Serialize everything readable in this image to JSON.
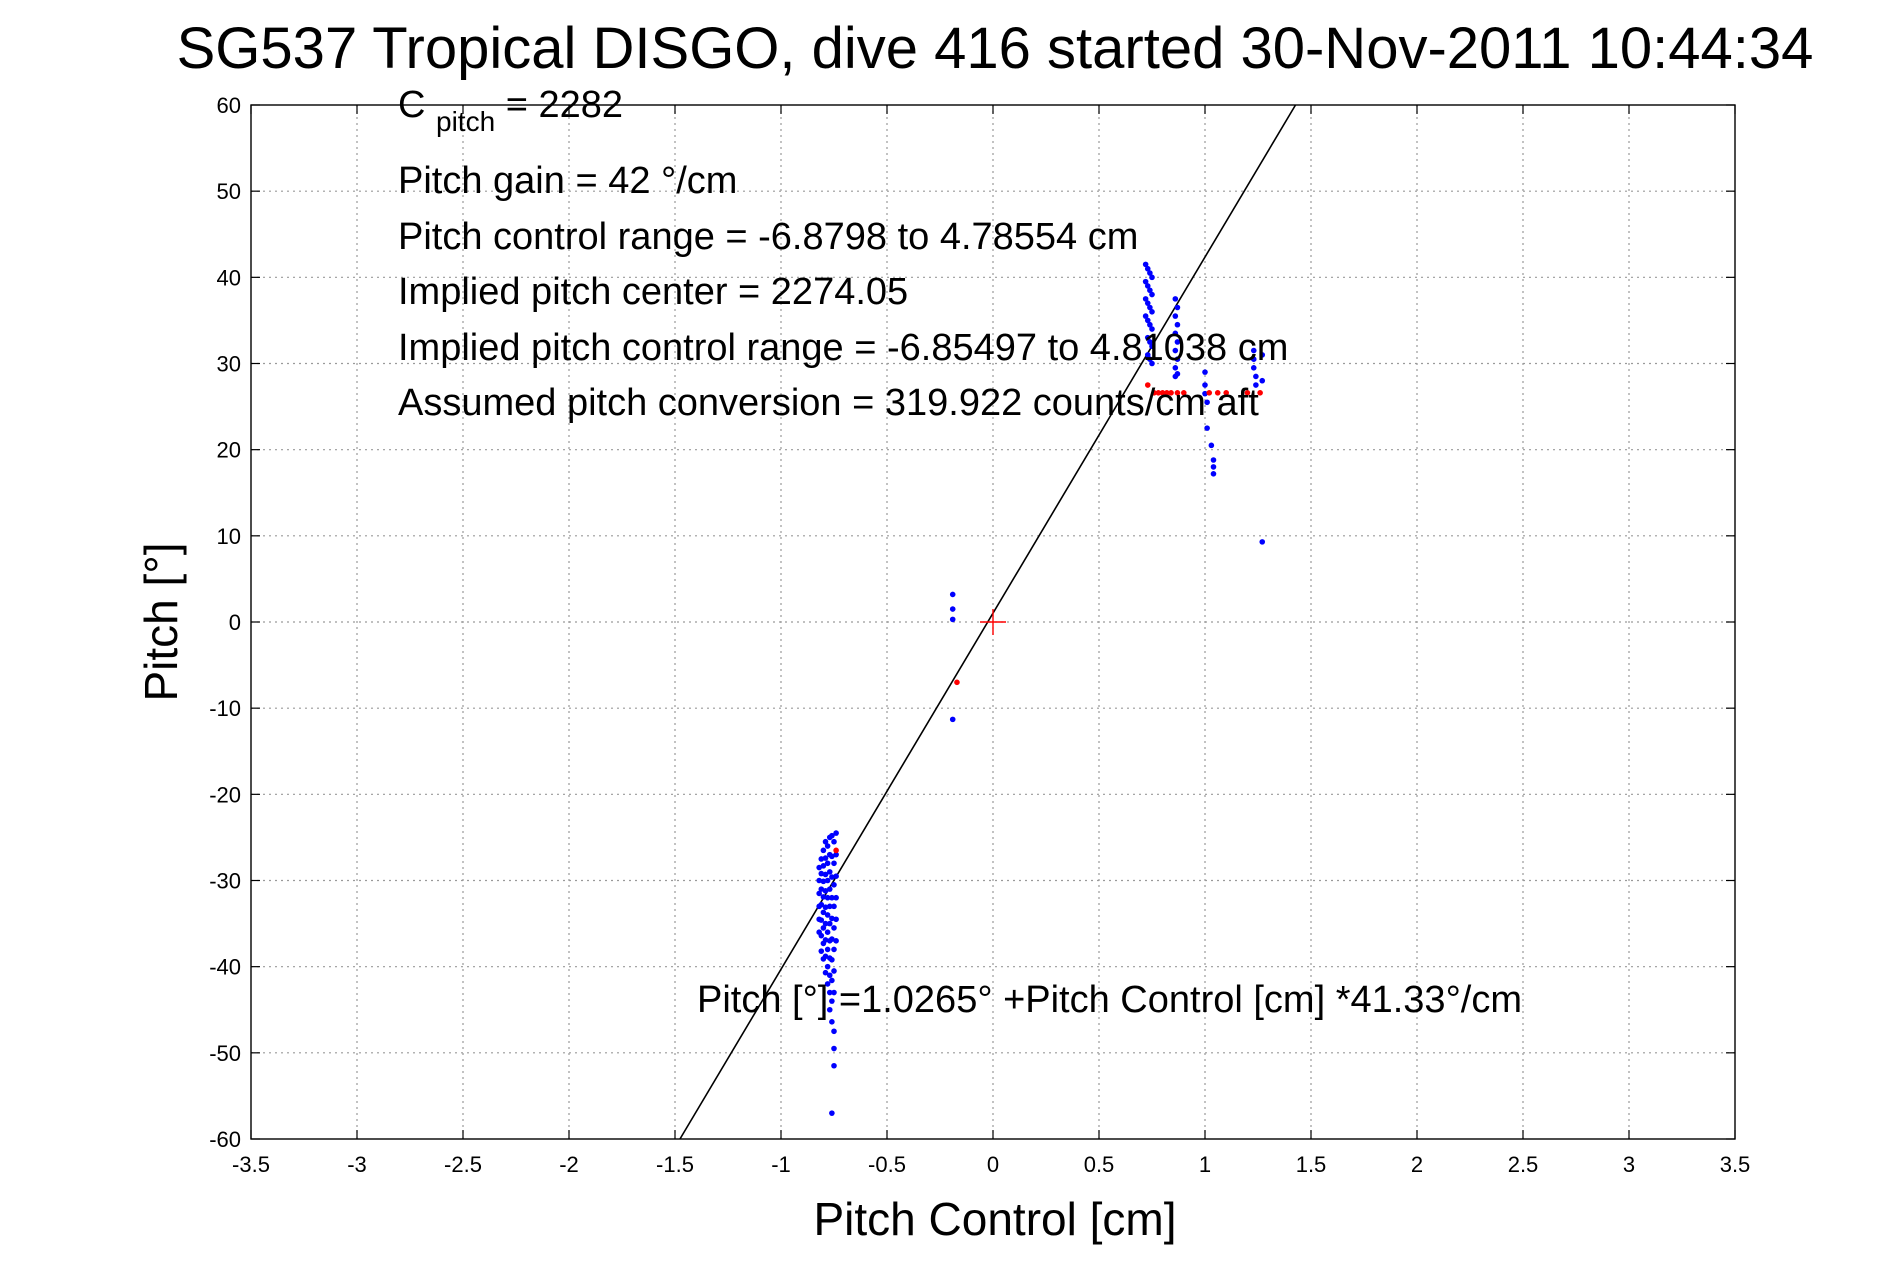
{
  "chart_data": {
    "type": "scatter",
    "title": "SG537 Tropical DISGO, dive 416 started 30-Nov-2011 10:44:34",
    "xlabel": "Pitch Control [cm]",
    "ylabel": "Pitch [°]",
    "xlim": [
      -3.5,
      3.5
    ],
    "ylim": [
      -60,
      60
    ],
    "x_ticks": [
      -3.5,
      -3,
      -2.5,
      -2,
      -1.5,
      -1,
      -0.5,
      0,
      0.5,
      1,
      1.5,
      2,
      2.5,
      3,
      3.5
    ],
    "y_ticks": [
      -60,
      -50,
      -40,
      -30,
      -20,
      -10,
      0,
      10,
      20,
      30,
      40,
      50,
      60
    ],
    "grid": true,
    "annotations": {
      "c_pitch_main": "C",
      "c_pitch_sub": "pitch",
      "c_pitch_value": " = 2282",
      "pitch_gain": "Pitch gain = 42 °/cm",
      "pitch_control_range": "Pitch control range = -6.8798 to 4.78554 cm",
      "implied_pitch_center": "Implied pitch center = 2274.05",
      "implied_pitch_control_range": "Implied pitch control range = -6.85497 to 4.81038 cm",
      "assumed_pitch_conversion": "Assumed pitch conversion = 319.922 counts/cm aft",
      "fit_equation": "Pitch [°] =1.0265° +Pitch Control [cm] *41.33°/cm"
    },
    "fit_line": {
      "intercept": 1.0265,
      "slope": 41.33,
      "color": "#000000"
    },
    "center_marker": {
      "x": 0,
      "y": 0,
      "color": "#ff0000"
    },
    "series": [
      {
        "color": "#0000ff",
        "points": [
          [
            -0.82,
            -28.5
          ],
          [
            -0.82,
            -30
          ],
          [
            -0.82,
            -31.5
          ],
          [
            -0.82,
            -33
          ],
          [
            -0.82,
            -34.5
          ],
          [
            -0.82,
            -36
          ],
          [
            -0.81,
            -27.5
          ],
          [
            -0.81,
            -29.2
          ],
          [
            -0.81,
            -31
          ],
          [
            -0.81,
            -32.8
          ],
          [
            -0.81,
            -34.6
          ],
          [
            -0.81,
            -36.4
          ],
          [
            -0.81,
            -38.2
          ],
          [
            -0.8,
            -26.5
          ],
          [
            -0.8,
            -28.3
          ],
          [
            -0.8,
            -30.1
          ],
          [
            -0.8,
            -31.9
          ],
          [
            -0.8,
            -33.7
          ],
          [
            -0.8,
            -35.5
          ],
          [
            -0.8,
            -37.3
          ],
          [
            -0.8,
            -39.1
          ],
          [
            -0.79,
            -25.5
          ],
          [
            -0.79,
            -27.4
          ],
          [
            -0.79,
            -29.3
          ],
          [
            -0.79,
            -31.2
          ],
          [
            -0.79,
            -33.1
          ],
          [
            -0.79,
            -35
          ],
          [
            -0.79,
            -36.9
          ],
          [
            -0.79,
            -38.8
          ],
          [
            -0.79,
            -40.7
          ],
          [
            -0.78,
            -26
          ],
          [
            -0.78,
            -28
          ],
          [
            -0.78,
            -30
          ],
          [
            -0.78,
            -32
          ],
          [
            -0.78,
            -34
          ],
          [
            -0.78,
            -36
          ],
          [
            -0.78,
            -38
          ],
          [
            -0.78,
            -40
          ],
          [
            -0.78,
            -42
          ],
          [
            -0.77,
            -25
          ],
          [
            -0.77,
            -27
          ],
          [
            -0.77,
            -29
          ],
          [
            -0.77,
            -31
          ],
          [
            -0.77,
            -33
          ],
          [
            -0.77,
            -35
          ],
          [
            -0.77,
            -37
          ],
          [
            -0.77,
            -39
          ],
          [
            -0.77,
            -41
          ],
          [
            -0.77,
            -43
          ],
          [
            -0.77,
            -45
          ],
          [
            -0.76,
            -24.8
          ],
          [
            -0.76,
            -27.2
          ],
          [
            -0.76,
            -29.6
          ],
          [
            -0.76,
            -32
          ],
          [
            -0.76,
            -34.4
          ],
          [
            -0.76,
            -36.8
          ],
          [
            -0.76,
            -39.2
          ],
          [
            -0.76,
            -41.6
          ],
          [
            -0.76,
            -44
          ],
          [
            -0.76,
            -46.4
          ],
          [
            -0.75,
            -25.5
          ],
          [
            -0.75,
            -28
          ],
          [
            -0.75,
            -30.5
          ],
          [
            -0.75,
            -33
          ],
          [
            -0.75,
            -35.5
          ],
          [
            -0.75,
            -38
          ],
          [
            -0.75,
            -40.5
          ],
          [
            -0.75,
            -43
          ],
          [
            -0.75,
            -47.5
          ],
          [
            -0.75,
            -49.5
          ],
          [
            -0.75,
            -51.5
          ],
          [
            -0.74,
            -24.5
          ],
          [
            -0.74,
            -27
          ],
          [
            -0.74,
            -29.5
          ],
          [
            -0.74,
            -32
          ],
          [
            -0.74,
            -34.5
          ],
          [
            -0.74,
            -37
          ],
          [
            -0.76,
            -57
          ],
          [
            -0.19,
            3.2
          ],
          [
            -0.19,
            1.5
          ],
          [
            -0.19,
            0.3
          ],
          [
            -0.19,
            -11.3
          ],
          [
            0.72,
            41.5
          ],
          [
            0.72,
            39.5
          ],
          [
            0.72,
            37.5
          ],
          [
            0.72,
            35.5
          ],
          [
            0.73,
            41
          ],
          [
            0.73,
            39
          ],
          [
            0.73,
            37
          ],
          [
            0.73,
            35
          ],
          [
            0.73,
            33
          ],
          [
            0.73,
            31
          ],
          [
            0.74,
            40.5
          ],
          [
            0.74,
            38.5
          ],
          [
            0.74,
            36.5
          ],
          [
            0.74,
            34.5
          ],
          [
            0.74,
            32.5
          ],
          [
            0.74,
            30.5
          ],
          [
            0.75,
            40
          ],
          [
            0.75,
            38
          ],
          [
            0.75,
            36
          ],
          [
            0.75,
            34
          ],
          [
            0.75,
            32
          ],
          [
            0.75,
            30
          ],
          [
            0.86,
            37.5
          ],
          [
            0.86,
            35.5
          ],
          [
            0.86,
            33.5
          ],
          [
            0.86,
            31.5
          ],
          [
            0.86,
            29.5
          ],
          [
            0.86,
            28.5
          ],
          [
            0.87,
            36.5
          ],
          [
            0.87,
            34.5
          ],
          [
            0.87,
            32.5
          ],
          [
            0.87,
            30.5
          ],
          [
            0.87,
            28.8
          ],
          [
            1.0,
            29
          ],
          [
            1.0,
            27.5
          ],
          [
            1.0,
            26.5
          ],
          [
            1.01,
            25.5
          ],
          [
            1.01,
            22.5
          ],
          [
            1.03,
            20.5
          ],
          [
            1.04,
            18.8
          ],
          [
            1.04,
            18
          ],
          [
            1.04,
            17.2
          ],
          [
            1.23,
            31.5
          ],
          [
            1.23,
            30.5
          ],
          [
            1.23,
            29.5
          ],
          [
            1.24,
            28.5
          ],
          [
            1.24,
            27.5
          ],
          [
            1.27,
            31
          ],
          [
            1.27,
            28
          ],
          [
            1.27,
            9.3
          ]
        ]
      },
      {
        "color": "#ff0000",
        "points": [
          [
            -0.74,
            -26.5
          ],
          [
            -0.17,
            -7.0
          ],
          [
            0.73,
            27.5
          ],
          [
            0.76,
            26.6
          ],
          [
            0.78,
            26.6
          ],
          [
            0.8,
            26.6
          ],
          [
            0.82,
            26.6
          ],
          [
            0.84,
            26.6
          ],
          [
            0.87,
            26.6
          ],
          [
            0.9,
            26.6
          ],
          [
            1.02,
            26.6
          ],
          [
            1.06,
            26.6
          ],
          [
            1.1,
            26.6
          ],
          [
            1.2,
            26.6
          ],
          [
            1.26,
            26.6
          ]
        ]
      }
    ]
  }
}
